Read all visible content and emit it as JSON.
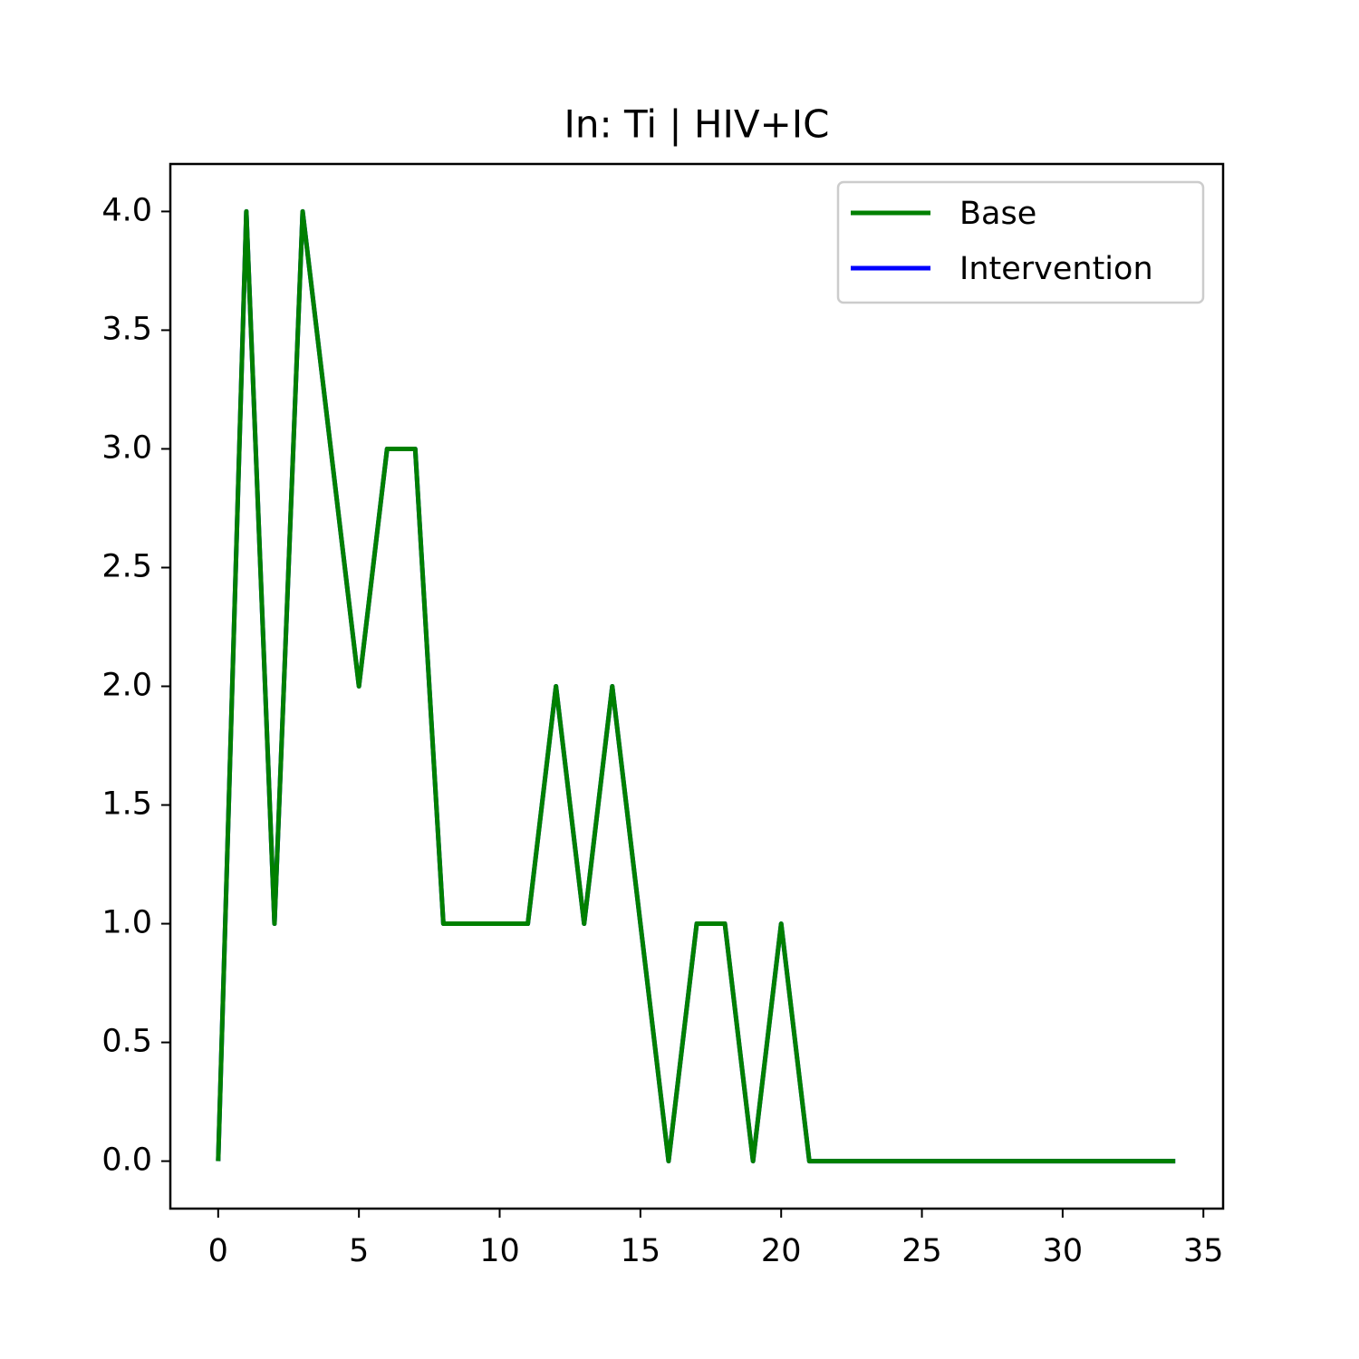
{
  "chart_data": {
    "type": "line",
    "title": "In: Ti | HIV+IC",
    "x": [
      0,
      1,
      2,
      3,
      4,
      5,
      6,
      7,
      8,
      9,
      10,
      11,
      12,
      13,
      14,
      15,
      16,
      17,
      18,
      19,
      20,
      21,
      22,
      23,
      24,
      25,
      26,
      27,
      28,
      29,
      30,
      31,
      32,
      33,
      34
    ],
    "series": [
      {
        "name": "Base",
        "color": "#008000",
        "values": [
          0,
          4,
          1,
          4,
          3,
          2,
          3,
          3,
          1,
          1,
          1,
          1,
          2,
          1,
          2,
          1,
          0,
          1,
          1,
          0,
          1,
          0,
          0,
          0,
          0,
          0,
          0,
          0,
          0,
          0,
          0,
          0,
          0,
          0,
          0
        ]
      },
      {
        "name": "Intervention",
        "color": "#0000ff",
        "values": [
          0,
          4,
          1,
          4,
          3,
          2,
          3,
          3,
          1,
          1,
          1,
          1,
          2,
          1,
          2,
          1,
          0,
          1,
          1,
          0,
          1,
          0,
          0,
          0,
          0,
          0,
          0,
          0,
          0,
          0,
          0,
          0,
          0,
          0,
          0
        ]
      }
    ],
    "xlim": [
      -1.7,
      35.7
    ],
    "xticks": [
      0,
      5,
      10,
      15,
      20,
      25,
      30,
      35
    ],
    "ylim": [
      -0.2,
      4.2
    ],
    "yticks": [
      {
        "value": 0,
        "label": "0.0"
      },
      {
        "value": 0.5,
        "label": "0.5"
      },
      {
        "value": 1,
        "label": "1.0"
      },
      {
        "value": 1.5,
        "label": "1.5"
      },
      {
        "value": 2,
        "label": "2.0"
      },
      {
        "value": 2.5,
        "label": "2.5"
      },
      {
        "value": 3,
        "label": "3.0"
      },
      {
        "value": 3.5,
        "label": "3.5"
      },
      {
        "value": 4,
        "label": "4.0"
      }
    ],
    "legend": "upper right",
    "grid": false
  }
}
